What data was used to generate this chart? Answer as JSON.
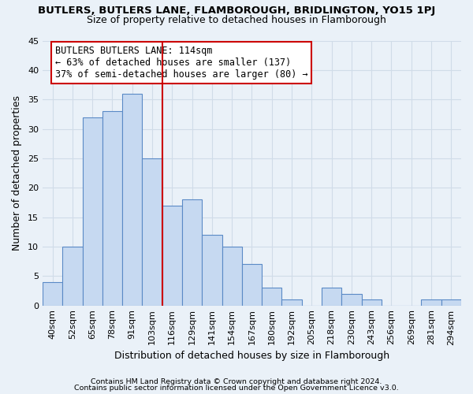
{
  "title": "BUTLERS, BUTLERS LANE, FLAMBOROUGH, BRIDLINGTON, YO15 1PJ",
  "subtitle": "Size of property relative to detached houses in Flamborough",
  "xlabel": "Distribution of detached houses by size in Flamborough",
  "ylabel": "Number of detached properties",
  "bar_labels": [
    "40sqm",
    "52sqm",
    "65sqm",
    "78sqm",
    "91sqm",
    "103sqm",
    "116sqm",
    "129sqm",
    "141sqm",
    "154sqm",
    "167sqm",
    "180sqm",
    "192sqm",
    "205sqm",
    "218sqm",
    "230sqm",
    "243sqm",
    "256sqm",
    "269sqm",
    "281sqm",
    "294sqm"
  ],
  "bar_values": [
    4,
    10,
    32,
    33,
    36,
    25,
    17,
    18,
    12,
    10,
    7,
    3,
    1,
    0,
    3,
    2,
    1,
    0,
    0,
    1,
    1
  ],
  "bar_color": "#c6d9f1",
  "bar_edge_color": "#5a8ac6",
  "vline_color": "#cc0000",
  "annotation_title": "BUTLERS BUTLERS LANE: 114sqm",
  "annotation_line1": "← 63% of detached houses are smaller (137)",
  "annotation_line2": "37% of semi-detached houses are larger (80) →",
  "annotation_box_color": "#ffffff",
  "annotation_box_edge": "#cc0000",
  "ylim": [
    0,
    45
  ],
  "footer1": "Contains HM Land Registry data © Crown copyright and database right 2024.",
  "footer2": "Contains public sector information licensed under the Open Government Licence v3.0.",
  "grid_color": "#d0dce8",
  "background_color": "#eaf1f8",
  "title_fontsize": 9.5,
  "subtitle_fontsize": 9.0,
  "axis_label_fontsize": 9.0,
  "tick_fontsize": 8.0,
  "annotation_fontsize": 8.5,
  "footer_fontsize": 6.8
}
